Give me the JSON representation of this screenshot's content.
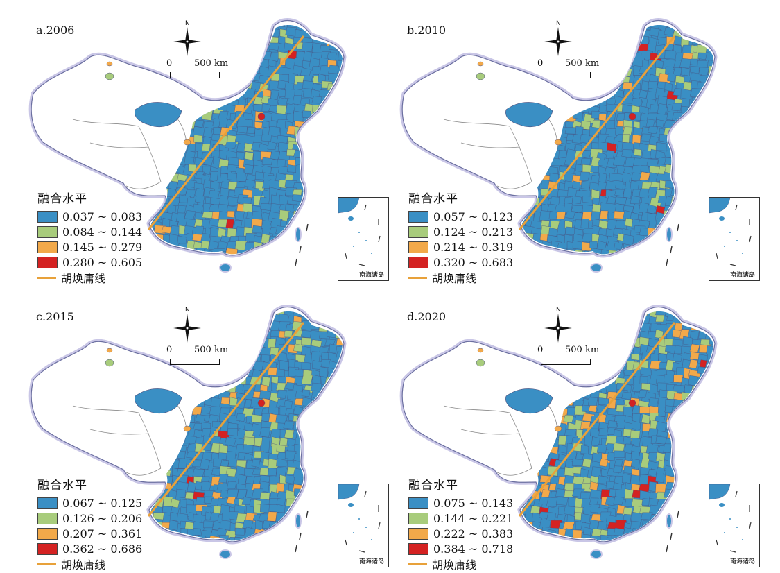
{
  "colors": {
    "class1": "#3a8fc4",
    "class2": "#a8cc7c",
    "class3": "#f2a94a",
    "class4": "#d42222",
    "hu_line": "#e8a13a",
    "border": "#9aa0c8"
  },
  "scale_bar": {
    "zero": "0",
    "length": "500 km"
  },
  "compass": {
    "north": "N"
  },
  "inset_label": "南海诸岛",
  "legend_title": "融合水平",
  "hu_line_label": "胡焕庸线",
  "panels": [
    {
      "id": "a",
      "title": "a.2006",
      "classes": [
        "0.037 ~ 0.083",
        "0.084 ~ 0.144",
        "0.145 ~ 0.279",
        "0.280 ~ 0.605"
      ]
    },
    {
      "id": "b",
      "title": "b.2010",
      "classes": [
        "0.057 ~ 0.123",
        "0.124 ~ 0.213",
        "0.214 ~ 0.319",
        "0.320 ~ 0.683"
      ]
    },
    {
      "id": "c",
      "title": "c.2015",
      "classes": [
        "0.067 ~ 0.125",
        "0.126 ~ 0.206",
        "0.207 ~ 0.361",
        "0.362 ~ 0.686"
      ]
    },
    {
      "id": "d",
      "title": "d.2020",
      "classes": [
        "0.075 ~ 0.143",
        "0.144 ~ 0.221",
        "0.222 ~ 0.383",
        "0.384 ~ 0.718"
      ]
    }
  ]
}
